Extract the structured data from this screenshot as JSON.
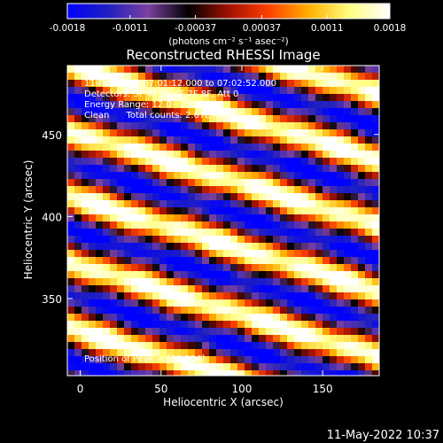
{
  "chart_data": {
    "type": "heatmap",
    "title": "Reconstructed RHESSI Image",
    "xlabel": "Heliocentric X (arcsec)",
    "ylabel": "Heliocentric Y (arcsec)",
    "xlim": [
      -8,
      185
    ],
    "ylim": [
      303,
      492
    ],
    "xticks": [
      "0",
      "50",
      "100",
      "150"
    ],
    "yticks": [
      "350",
      "400",
      "450"
    ],
    "xtick_values": [
      0,
      50,
      100,
      150
    ],
    "ytick_values": [
      350,
      400,
      450
    ],
    "colorbar": {
      "min": -0.0018,
      "max": 0.0018,
      "ticks": [
        "-0.0018",
        "-0.0011",
        "-0.00037",
        "0.00037",
        "0.0011",
        "0.0018"
      ],
      "tick_values": [
        -0.0018,
        -0.0011,
        -0.00037,
        0.00037,
        0.0011,
        0.0018
      ],
      "units_label": "(photons cm⁻² s⁻¹ asec⁻²)",
      "colormap": [
        "#0000ff",
        "#2020c0",
        "#7a40a0",
        "#000000",
        "#a01000",
        "#ff4000",
        "#ffb000",
        "#ffff80",
        "#ffffff"
      ]
    },
    "annotations": [
      "11-Feb-2013 07:01:12.000 to 07:02:52.000",
      "Detectors: 3F 4F 5F 6F 7F 8F, Att 0",
      "Energy Range: 12.0 - 25.0 keV",
      "Clean      Total counts: 2.67E+03"
    ],
    "peak_label": "Position of Peak = [96,304]",
    "pattern": {
      "description": "diagonal fringe pattern of bright ridges",
      "slope_arcsec_per_arcsec": -0.3,
      "period_arcsec": 40,
      "ridge_intercepts_y_at_x0": [
        330,
        370,
        410,
        450,
        490
      ]
    }
  },
  "footer": {
    "timestamp": "11-May-2022 10:37"
  }
}
